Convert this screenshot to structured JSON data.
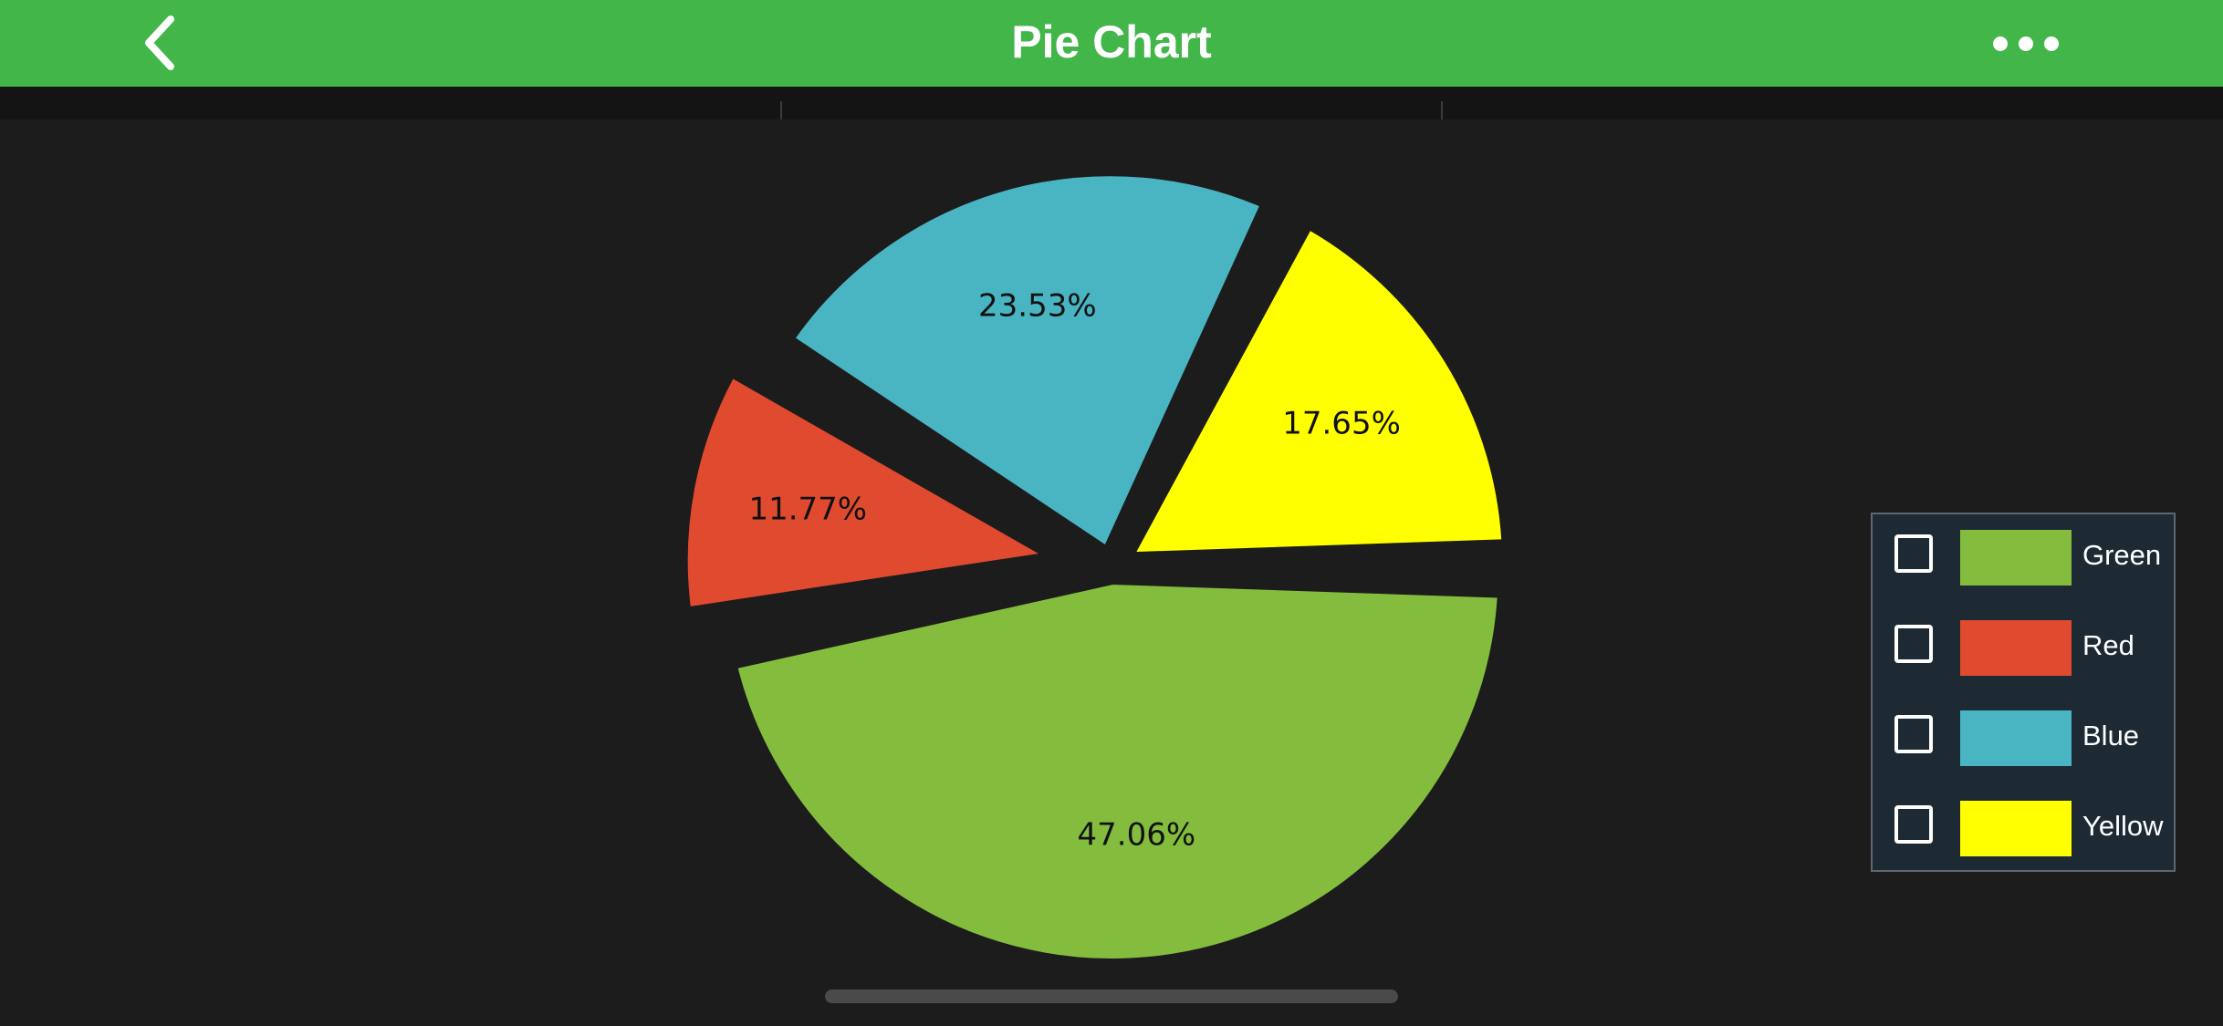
{
  "nav": {
    "title": "Pie Chart",
    "back_icon": "chevron-left-icon",
    "more_icon": "ellipsis-icon"
  },
  "colors": {
    "nav_background": "#42b649",
    "page_background": "#1c1c1c",
    "legend_background": "#1d2a33"
  },
  "chart_data": {
    "type": "pie",
    "categories": [
      "Green",
      "Red",
      "Blue",
      "Yellow"
    ],
    "values": [
      47.06,
      11.77,
      23.53,
      17.65
    ],
    "labels": [
      "47.06%",
      "11.77%",
      "23.53%",
      "17.65%"
    ],
    "colors": [
      "#84bd3e",
      "#e04a2f",
      "#4ab5c2",
      "#ffff00"
    ],
    "exploded": [
      false,
      true,
      false,
      false
    ],
    "start_angle_deg": 0,
    "direction": "clockwise",
    "legend_position": "right",
    "legend": [
      {
        "label": "Green",
        "color": "#84bd3e",
        "checked": false
      },
      {
        "label": "Red",
        "color": "#e04a2f",
        "checked": false
      },
      {
        "label": "Blue",
        "color": "#4ab5c2",
        "checked": false
      },
      {
        "label": "Yellow",
        "color": "#ffff00",
        "checked": false
      }
    ]
  }
}
